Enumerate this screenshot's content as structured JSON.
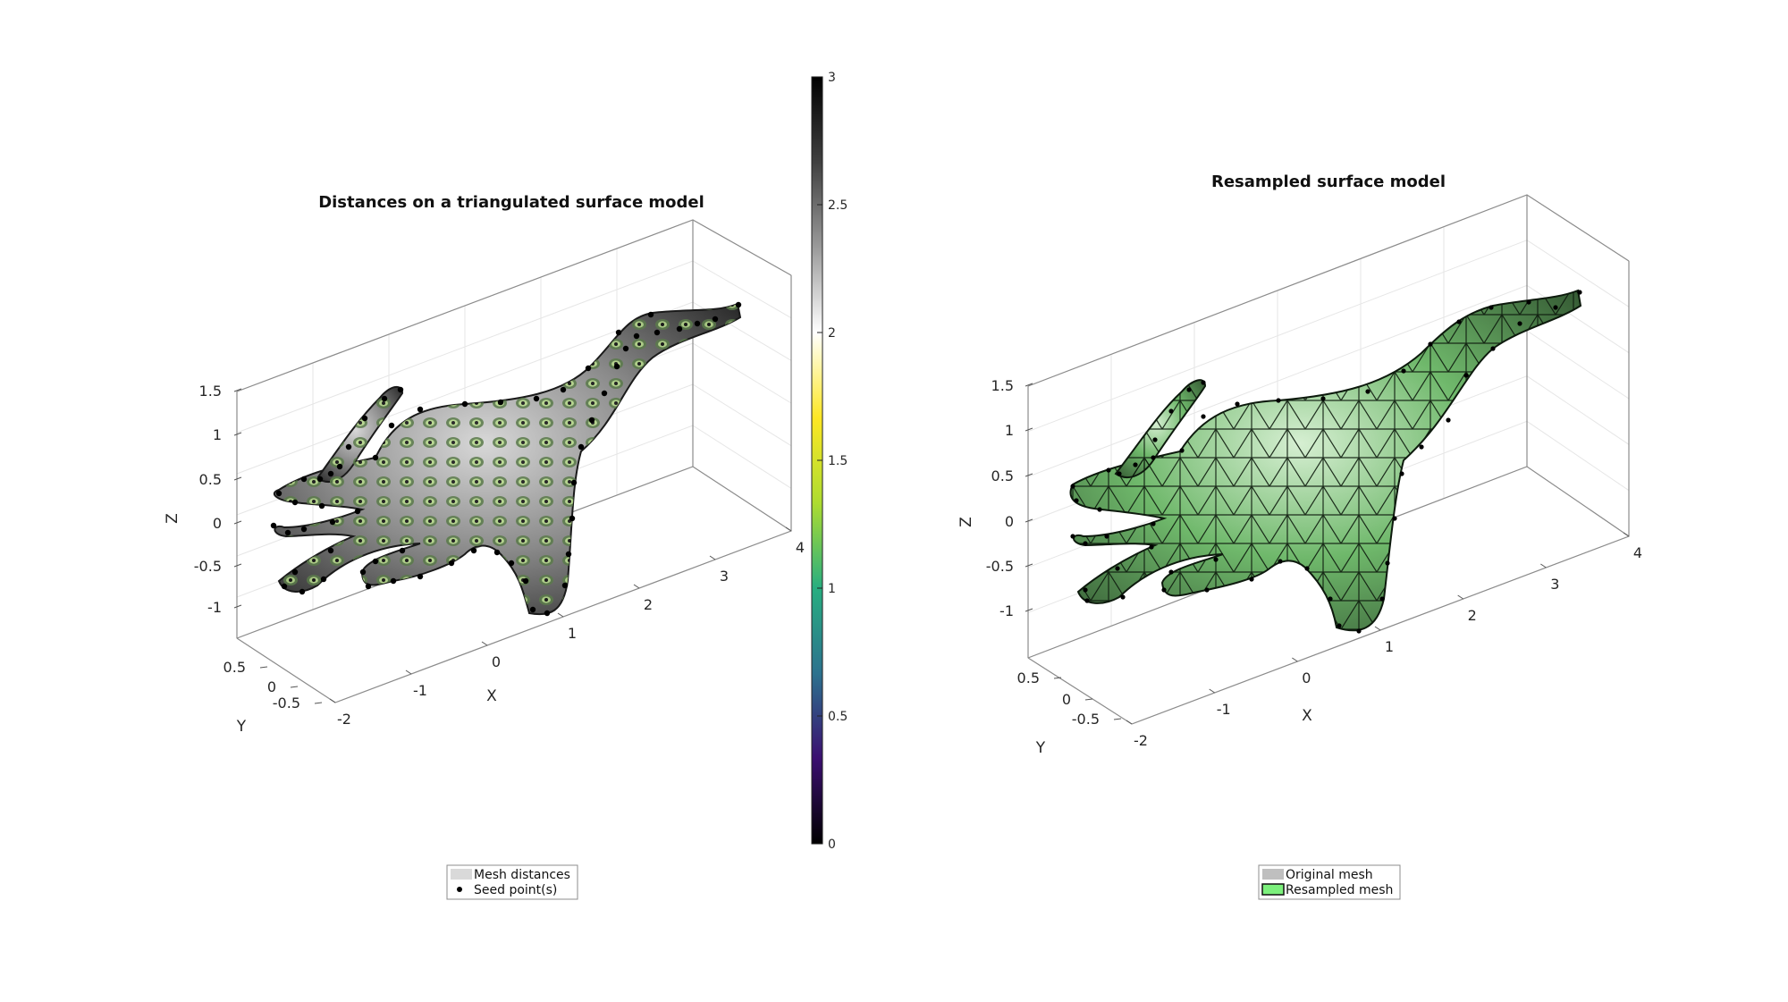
{
  "chart_data": [
    {
      "type": "3d-surface",
      "title": "Distances on a triangulated surface model",
      "xlabel": "X",
      "ylabel": "Y",
      "zlabel": "Z",
      "xticks": [
        "-2",
        "-1",
        "0",
        "1",
        "2",
        "3",
        "4"
      ],
      "yticks": [
        "0.5",
        "0",
        "-0.5"
      ],
      "zticks": [
        "1.5",
        "1",
        "0.5",
        "0",
        "-0.5",
        "-1"
      ],
      "grid": true,
      "colorbar": {
        "range": [
          0,
          3
        ],
        "ticks": [
          "0",
          "0.5",
          "1",
          "1.5",
          "2",
          "2.5",
          "3"
        ],
        "colormap": [
          "#000000",
          "#3b0f70",
          "#2c728e",
          "#28ae80",
          "#addc30",
          "#fde725",
          "#ffffff",
          "#9a9a9a",
          "#404040",
          "#000000"
        ]
      },
      "legend": {
        "location": "bottom",
        "entries": [
          {
            "label": "Mesh distances",
            "marker": "patch",
            "color": "#d9d9d9"
          },
          {
            "label": "Seed point(s)",
            "marker": "dot",
            "color": "#000000"
          }
        ]
      }
    },
    {
      "type": "3d-surface",
      "title": "Resampled surface model",
      "xlabel": "X",
      "ylabel": "Y",
      "zlabel": "Z",
      "xticks": [
        "-2",
        "-1",
        "0",
        "1",
        "2",
        "3",
        "4"
      ],
      "yticks": [
        "0.5",
        "0",
        "-0.5"
      ],
      "zticks": [
        "1.5",
        "1",
        "0.5",
        "0",
        "-0.5",
        "-1"
      ],
      "grid": true,
      "legend": {
        "location": "bottom",
        "entries": [
          {
            "label": "Original mesh",
            "marker": "patch",
            "color": "#bfbfbf"
          },
          {
            "label": "Resampled mesh",
            "marker": "patch",
            "color": "#7cf07c"
          }
        ]
      }
    }
  ]
}
